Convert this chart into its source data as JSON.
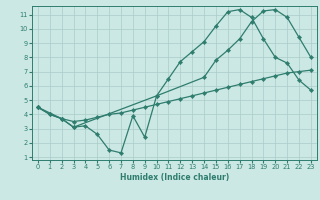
{
  "xlabel": "Humidex (Indice chaleur)",
  "bg_color": "#cce8e4",
  "line_color": "#2e7d6e",
  "grid_color": "#aaccca",
  "xlim": [
    -0.5,
    23.5
  ],
  "ylim": [
    0.8,
    11.6
  ],
  "xticks": [
    0,
    1,
    2,
    3,
    4,
    5,
    6,
    7,
    8,
    9,
    10,
    11,
    12,
    13,
    14,
    15,
    16,
    17,
    18,
    19,
    20,
    21,
    22,
    23
  ],
  "yticks": [
    1,
    2,
    3,
    4,
    5,
    6,
    7,
    8,
    9,
    10,
    11
  ],
  "line1_x": [
    0,
    1,
    2,
    3,
    4,
    5,
    6,
    7,
    8,
    9,
    10,
    11,
    12,
    13,
    14,
    15,
    16,
    17,
    18,
    19,
    20,
    21,
    22,
    23
  ],
  "line1_y": [
    4.5,
    4.0,
    3.7,
    3.1,
    3.2,
    2.6,
    1.5,
    1.3,
    3.9,
    2.4,
    5.3,
    6.5,
    7.7,
    8.4,
    9.1,
    10.2,
    11.2,
    11.35,
    10.8,
    9.3,
    8.0,
    7.6,
    6.4,
    5.7
  ],
  "line2_x": [
    0,
    1,
    2,
    3,
    4,
    5,
    6,
    7,
    8,
    9,
    10,
    11,
    12,
    13,
    14,
    15,
    16,
    17,
    18,
    19,
    20,
    21,
    22,
    23
  ],
  "line2_y": [
    4.5,
    4.0,
    3.7,
    3.5,
    3.6,
    3.8,
    4.0,
    4.1,
    4.3,
    4.5,
    4.7,
    4.9,
    5.1,
    5.3,
    5.5,
    5.7,
    5.9,
    6.1,
    6.3,
    6.5,
    6.7,
    6.9,
    7.0,
    7.1
  ],
  "line3_x": [
    0,
    2,
    3,
    10,
    14,
    15,
    16,
    17,
    18,
    19,
    20,
    21,
    22,
    23
  ],
  "line3_y": [
    4.5,
    3.7,
    3.1,
    5.3,
    6.6,
    7.8,
    8.5,
    9.3,
    10.5,
    11.25,
    11.35,
    10.8,
    9.4,
    8.0
  ],
  "xlabel_fontsize": 5.5,
  "tick_fontsize": 4.8,
  "linewidth": 0.9,
  "markersize": 2.2
}
